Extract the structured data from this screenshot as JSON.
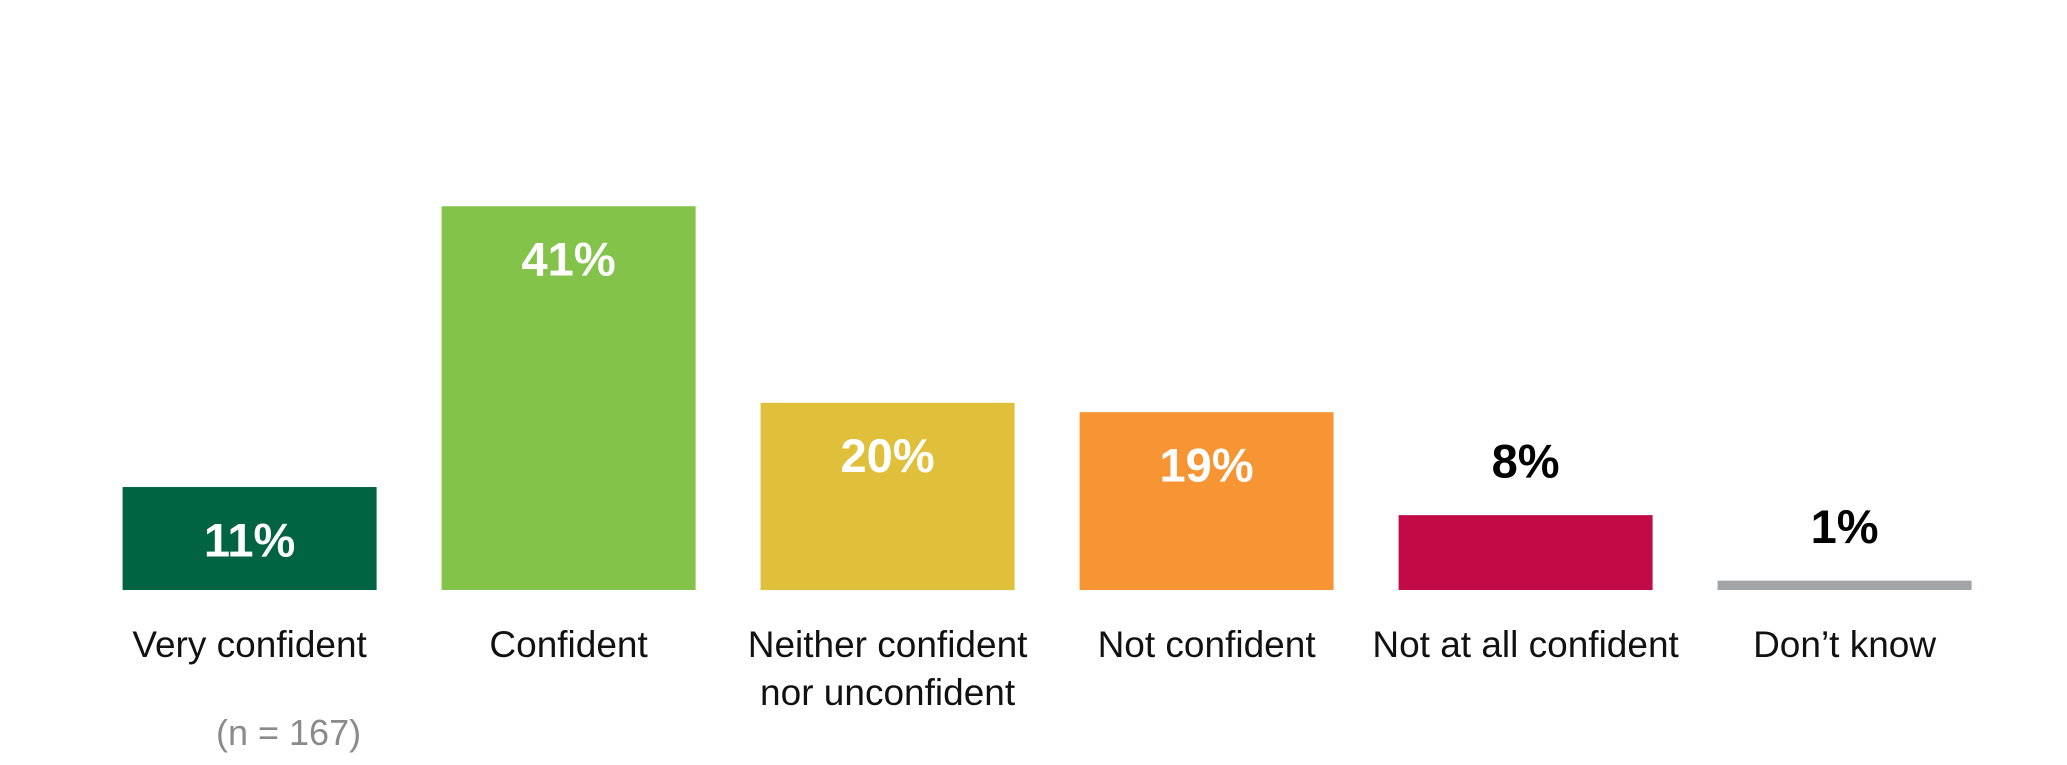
{
  "chart_data": {
    "type": "bar",
    "categories": [
      "Very confident",
      "Confident",
      "Neither confident nor unconfident",
      "Not confident",
      "Not at all confident",
      "Don’t know"
    ],
    "values": [
      11,
      41,
      20,
      19,
      8,
      1
    ],
    "value_labels": [
      "11%",
      "41%",
      "20%",
      "19%",
      "8%",
      "1%"
    ],
    "colors": [
      "#006341",
      "#84c34a",
      "#e0c03a",
      "#f79433",
      "#c20b46",
      "#a2a5a8"
    ],
    "note": "(n = 167)"
  }
}
